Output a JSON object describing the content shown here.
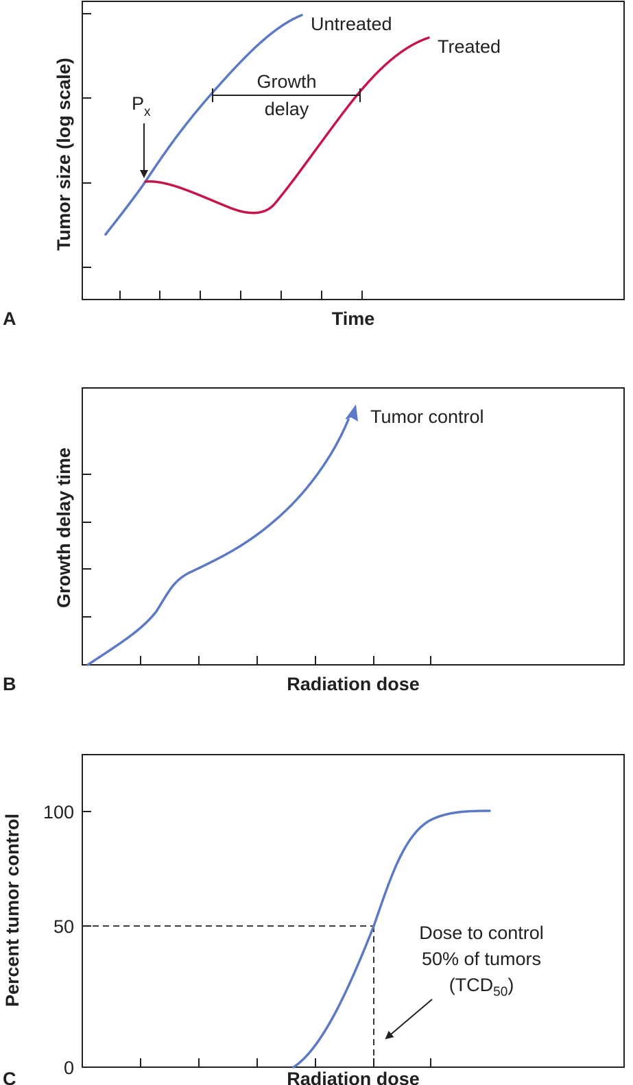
{
  "colors": {
    "untreated": "#5b79c4",
    "treated": "#c4164a",
    "ink": "#231f20"
  },
  "chart_data": [
    {
      "panel": "A",
      "type": "line",
      "xlabel": "Time",
      "ylabel": "Tumor size (log scale)",
      "series": [
        {
          "name": "Untreated",
          "label": "Untreated",
          "x": [
            0.3,
            1,
            2,
            3,
            4,
            5.5
          ],
          "y": [
            0.8,
            1.7,
            3.2,
            4.5,
            5.4,
            6.1
          ]
        },
        {
          "name": "Treated",
          "label": "Treated",
          "x": [
            1,
            1.5,
            2.5,
            3,
            3.4,
            4,
            5,
            6,
            7,
            8
          ],
          "y": [
            1.7,
            1.7,
            1.35,
            1.1,
            1.1,
            1.6,
            2.8,
            4.0,
            5.4,
            6.1
          ]
        }
      ],
      "annotations": {
        "irradiation": {
          "base": "P",
          "sub": "x"
        },
        "growth_delay": [
          "Growth",
          "delay"
        ]
      }
    },
    {
      "panel": "B",
      "type": "line",
      "xlabel": "Radiation dose",
      "ylabel": "Growth delay time",
      "series": [
        {
          "name": "Growth delay",
          "x": [
            0.1,
            1,
            1.5,
            2,
            3,
            4,
            4.8,
            5.5
          ],
          "y": [
            0,
            0.7,
            1.3,
            1.9,
            2.5,
            3.5,
            4.6,
            5.5
          ]
        }
      ],
      "annotation": "Tumor control"
    },
    {
      "panel": "C",
      "type": "line",
      "xlabel": "Radiation dose",
      "ylabel": "Percent tumor control",
      "yticks": [
        "0",
        "50",
        "100"
      ],
      "series": [
        {
          "name": "Tumor control",
          "x": [
            3.6,
            4.2,
            5,
            5.5,
            6,
            6.5,
            7,
            7.5,
            8,
            8.5
          ],
          "y": [
            0,
            5,
            25,
            50,
            75,
            91,
            97,
            99,
            99.7,
            100
          ]
        }
      ],
      "tcd50": {
        "dose": 5.5,
        "percent": 50
      },
      "annotation": [
        "Dose to control",
        "50% of tumors",
        "(TCD",
        "50",
        ")"
      ]
    }
  ]
}
